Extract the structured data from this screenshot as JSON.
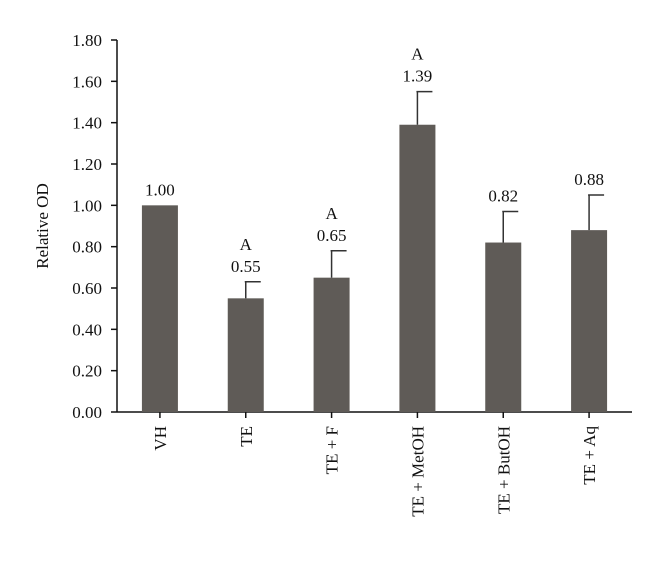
{
  "chart_data": {
    "type": "bar",
    "title": "",
    "xlabel": "",
    "ylabel": "Relative OD",
    "ylim": [
      0,
      1.8
    ],
    "yticks": [
      "0.00",
      "0.20",
      "0.40",
      "0.60",
      "0.80",
      "1.00",
      "1.20",
      "1.40",
      "1.60",
      "1.80"
    ],
    "categories": [
      "VH",
      "TE",
      "TE + F",
      "TE + MetOH",
      "TE + ButOH",
      "TE + Aq"
    ],
    "values": [
      1.0,
      0.55,
      0.65,
      1.39,
      0.82,
      0.88
    ],
    "value_labels": [
      "1.00",
      "0.55",
      "0.65",
      "1.39",
      "0.82",
      "0.88"
    ],
    "error_upper": [
      0.0,
      0.08,
      0.13,
      0.16,
      0.15,
      0.17
    ],
    "significance": [
      "",
      "A",
      "A",
      "A",
      "",
      ""
    ],
    "bar_color": "#5f5b57",
    "grid": false,
    "legend": "none"
  }
}
